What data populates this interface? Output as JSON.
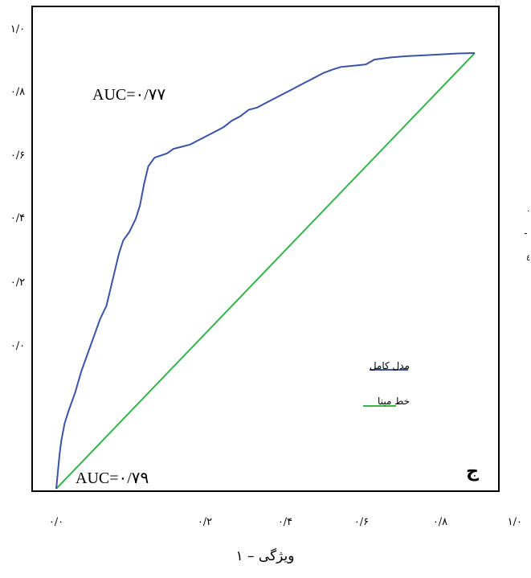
{
  "chart_data": {
    "type": "line",
    "title": "",
    "xlabel": "ویژگی – ۱",
    "ylabel": "",
    "panel_label": "ج",
    "x_tick_labels": [
      "۰/۰",
      "۰/۲",
      "۰/۴",
      "۰/۶",
      "۰/۸",
      "۱/۰"
    ],
    "y_tick_labels": [
      "۱/۰",
      "۰/۸",
      "۰/۶",
      "۰/۴",
      "۰/۲",
      "۰/۰"
    ],
    "xlim": [
      0,
      1
    ],
    "ylim": [
      0,
      1
    ],
    "grid": false,
    "legend_position": "right-middle",
    "annotations": [
      {
        "text": "AUC=۰/۷۷",
        "position": "top-left"
      },
      {
        "text": "AUC=۰/۷۹",
        "position": "bottom-left"
      }
    ],
    "stray_marks": [
      "٠",
      "ـ",
      "٤"
    ],
    "series": [
      {
        "name": "مدل کامل",
        "color": "#3a53a4",
        "x": [
          0.0,
          0.004,
          0.008,
          0.012,
          0.02,
          0.03,
          0.045,
          0.06,
          0.075,
          0.09,
          0.105,
          0.12,
          0.13,
          0.14,
          0.15,
          0.16,
          0.175,
          0.19,
          0.2,
          0.21,
          0.22,
          0.235,
          0.25,
          0.265,
          0.28,
          0.3,
          0.32,
          0.34,
          0.36,
          0.38,
          0.4,
          0.42,
          0.44,
          0.46,
          0.48,
          0.5,
          0.52,
          0.54,
          0.56,
          0.58,
          0.6,
          0.62,
          0.64,
          0.66,
          0.68,
          0.7,
          0.72,
          0.74,
          0.76,
          0.8,
          0.84,
          0.88,
          0.92,
          0.96,
          1.0
        ],
        "y": [
          0.0,
          0.04,
          0.08,
          0.11,
          0.15,
          0.18,
          0.22,
          0.27,
          0.31,
          0.35,
          0.39,
          0.42,
          0.46,
          0.5,
          0.54,
          0.57,
          0.59,
          0.62,
          0.65,
          0.7,
          0.74,
          0.76,
          0.765,
          0.77,
          0.78,
          0.785,
          0.79,
          0.8,
          0.81,
          0.82,
          0.83,
          0.845,
          0.855,
          0.87,
          0.875,
          0.885,
          0.895,
          0.905,
          0.915,
          0.925,
          0.935,
          0.945,
          0.955,
          0.962,
          0.968,
          0.97,
          0.972,
          0.974,
          0.985,
          0.99,
          0.993,
          0.995,
          0.997,
          0.999,
          1.0
        ]
      },
      {
        "name": "خط مبنا",
        "color": "#34b44a",
        "x": [
          0.0,
          1.0
        ],
        "y": [
          0.0,
          1.0
        ]
      }
    ]
  }
}
